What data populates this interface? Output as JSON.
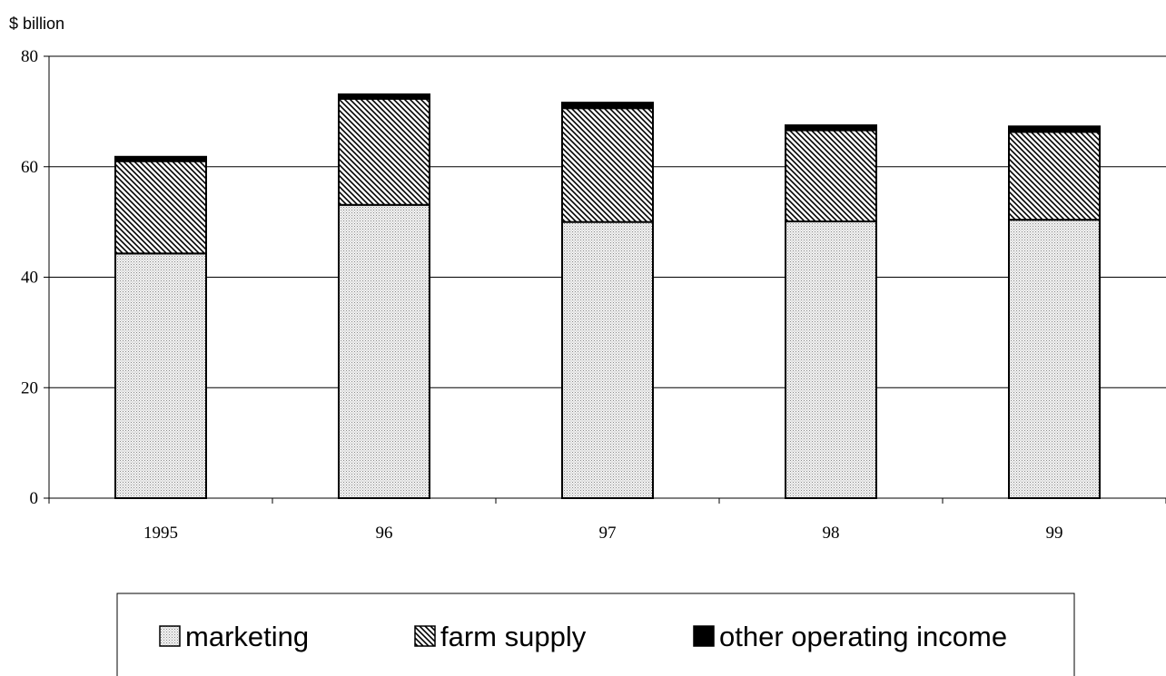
{
  "chart_data": {
    "type": "bar",
    "stacked": true,
    "unit_label": "$ billion",
    "categories": [
      "1995",
      "96",
      "97",
      "98",
      "99"
    ],
    "series": [
      {
        "name": "marketing",
        "values": [
          44.3,
          53.1,
          50.0,
          50.1,
          50.4
        ],
        "pattern": "dots",
        "color": "#dcdcdc"
      },
      {
        "name": "farm supply",
        "values": [
          16.7,
          19.2,
          20.6,
          16.5,
          15.9
        ],
        "pattern": "hatch",
        "color": "#000000"
      },
      {
        "name": "other operating income",
        "values": [
          0.8,
          0.8,
          1.0,
          0.9,
          1.0
        ],
        "pattern": "solid",
        "color": "#000000"
      }
    ],
    "ylim": [
      0,
      80
    ],
    "y_ticks": [
      "0",
      "20",
      "40",
      "60",
      "80"
    ],
    "grid": true,
    "legend_position": "bottom"
  }
}
